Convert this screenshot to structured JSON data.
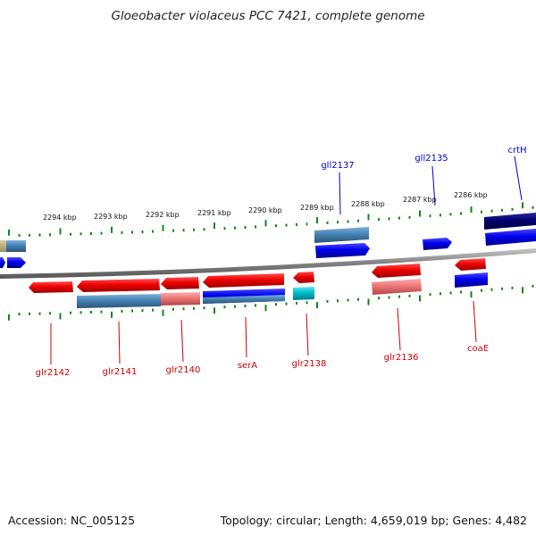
{
  "title": "Gloeobacter violaceus PCC 7421, complete genome",
  "accession": "Accession: NC_005125",
  "topology": "Topology: circular; Length: 4,659,019 bp; Genes: 4,482",
  "scale_ticks": [
    "2294 kbp",
    "2293 kbp",
    "2292 kbp",
    "2291 kbp",
    "2290 kbp",
    "2289 kbp",
    "2288 kbp",
    "2287 kbp",
    "2286 kbp"
  ],
  "genes_forward": [
    "gll2137",
    "gll2135",
    "crtH"
  ],
  "genes_reverse": [
    "glr2142",
    "glr2141",
    "glr2140",
    "serA",
    "glr2138",
    "glr2136",
    "coaE"
  ],
  "colors": {
    "forward_label": "#0000cc",
    "reverse_label": "#cc0000",
    "tick": "#118811",
    "red_gene": "#ee0000",
    "blue_gene": "#0000ee",
    "steel_gene": "#4682b4",
    "navy_gene": "#000070",
    "pink_gene": "#ee7777",
    "cyan_gene": "#00bbcc",
    "backbone": "#888888"
  }
}
